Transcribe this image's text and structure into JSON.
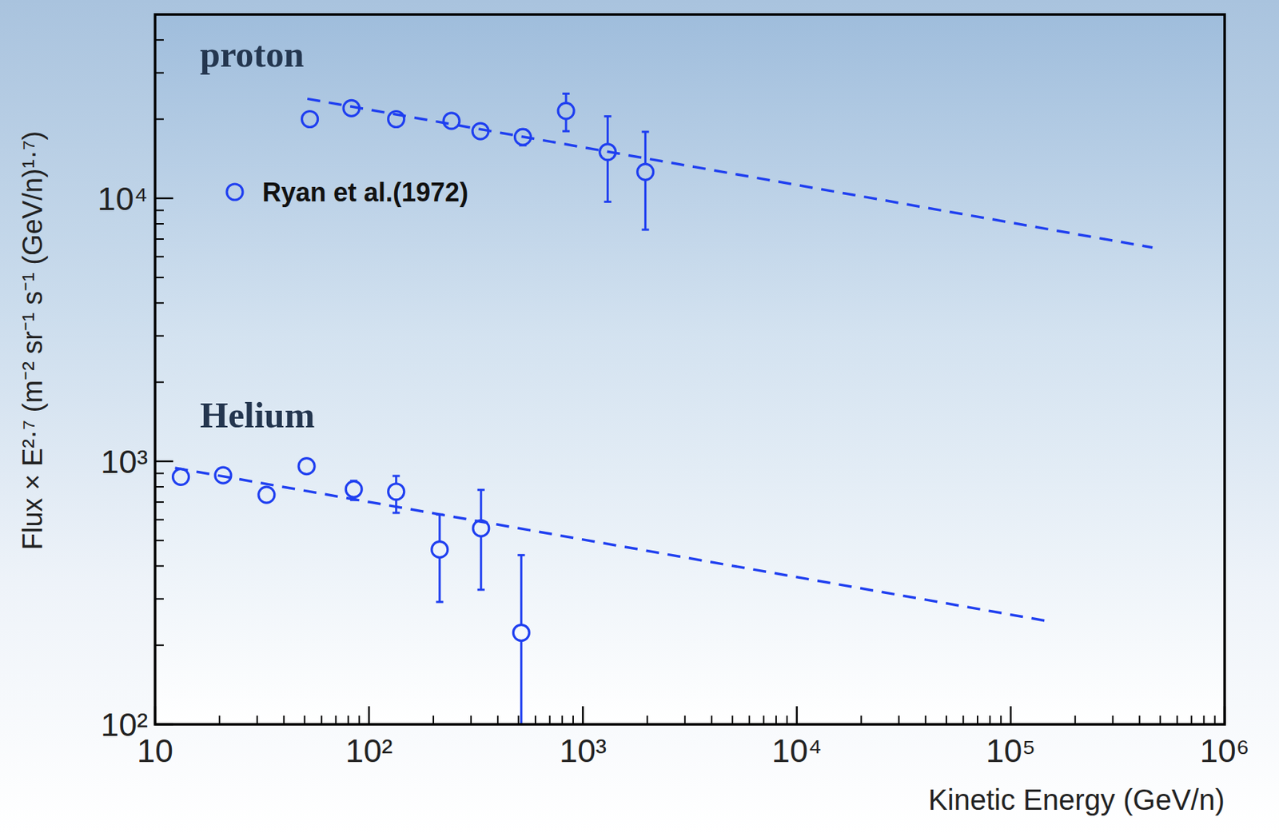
{
  "chart_data": {
    "type": "scatter",
    "log": true,
    "grid": false,
    "legend": "upper left",
    "legend_label": "Ryan et al.(1972)",
    "x_label": "Kinetic Energy (GeV/n)",
    "y_label": "Flux × E²·⁷ (m⁻² sr⁻¹ s⁻¹ (GeV/n)¹·⁷)",
    "xlim": [
      10,
      1000000
    ],
    "ylim": [
      100,
      50000
    ],
    "xticks": [
      10,
      {
        "value": 100,
        "label": "10²"
      },
      {
        "value": 1000,
        "label": "10³"
      },
      {
        "value": 10000,
        "label": "10⁴"
      },
      {
        "value": 100000,
        "label": "10⁵"
      },
      {
        "value": 1000000,
        "label": "10⁶"
      }
    ],
    "yticks": [
      {
        "value": 100,
        "label": "10²"
      },
      {
        "value": 1000,
        "label": "10³"
      },
      {
        "value": 10000,
        "label": "10⁴"
      }
    ],
    "series": [
      {
        "name": "proton",
        "type": "scatter",
        "marker": "open-circle",
        "color": "#1f3ff0",
        "x": [
          52.9,
          82.8,
          134,
          243,
          332,
          524,
          834,
          1306,
          1959
        ],
        "values": [
          20000,
          22000,
          20000,
          19700,
          18000,
          17100,
          21500,
          15000,
          12600
        ],
        "error_low": [
          null,
          null,
          null,
          null,
          null,
          1200,
          3500,
          5300,
          5000
        ],
        "error_high": [
          null,
          null,
          null,
          null,
          null,
          1200,
          3500,
          5500,
          5300
        ]
      },
      {
        "name": "Helium",
        "type": "scatter",
        "marker": "open-circle",
        "color": "#1f3ff0",
        "x": [
          13.2,
          20.8,
          33.2,
          51.1,
          84.9,
          134,
          214,
          334,
          515
        ],
        "values": [
          873,
          885,
          746,
          958,
          783,
          767,
          462,
          556,
          223
        ],
        "error_low": [
          null,
          null,
          null,
          null,
          70,
          130,
          170,
          231,
          143
        ],
        "error_high": [
          null,
          null,
          null,
          null,
          60,
          113,
          166,
          223,
          217
        ]
      },
      {
        "type": "line",
        "line_style": "dashed",
        "color": "#1f3ff0",
        "x": [
          51.5,
          460000
        ],
        "values": [
          23900,
          6500
        ]
      },
      {
        "type": "line",
        "line_style": "dashed",
        "color": "#1f3ff0",
        "x": [
          12.4,
          144000
        ],
        "values": [
          944,
          248
        ]
      }
    ]
  }
}
